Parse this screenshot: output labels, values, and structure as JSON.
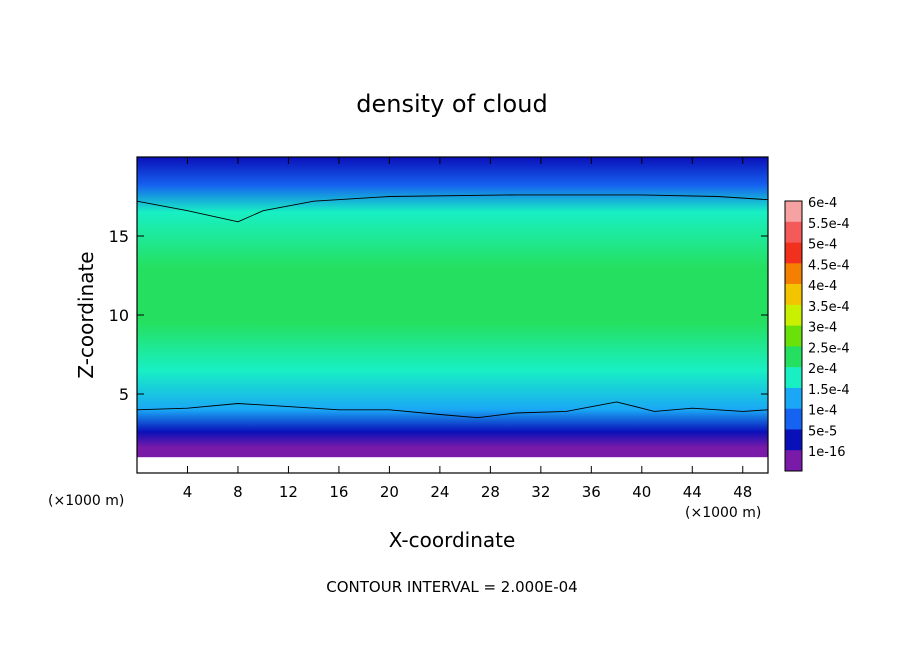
{
  "chart_data": {
    "type": "heatmap",
    "title": "density of cloud",
    "xlabel": "X-coordinate",
    "ylabel": "Z-coordinate",
    "x_unit_left": "(×1000 m)",
    "x_unit_right": "(×1000 m)",
    "footer": "CONTOUR INTERVAL = 2.000E-04",
    "xlim": [
      0,
      50
    ],
    "ylim": [
      0,
      20
    ],
    "x_ticks": [
      4,
      8,
      12,
      16,
      20,
      24,
      28,
      32,
      36,
      40,
      44,
      48
    ],
    "y_ticks": [
      5,
      10,
      15
    ],
    "grid": false,
    "colorbar": {
      "placement": "right",
      "levels": [
        {
          "label": "6e-4",
          "color": "#f7a2a2"
        },
        {
          "label": "5.5e-4",
          "color": "#f55a5a"
        },
        {
          "label": "5e-4",
          "color": "#f2301e"
        },
        {
          "label": "4.5e-4",
          "color": "#f57f00"
        },
        {
          "label": "4e-4",
          "color": "#f3c400"
        },
        {
          "label": "3.5e-4",
          "color": "#c8f000"
        },
        {
          "label": "3e-4",
          "color": "#6be10a"
        },
        {
          "label": "2.5e-4",
          "color": "#25e060"
        },
        {
          "label": "2e-4",
          "color": "#18f0c4"
        },
        {
          "label": "1.5e-4",
          "color": "#1aa7f5"
        },
        {
          "label": "1e-4",
          "color": "#1563f0"
        },
        {
          "label": "5e-5",
          "color": "#0a10b8"
        },
        {
          "label": "1e-16",
          "color": "#7a1aa8"
        }
      ]
    },
    "vertical_profile": [
      {
        "z": 1.0,
        "value": 0
      },
      {
        "z": 1.6,
        "value": 4e-05
      },
      {
        "z": 2.6,
        "value": 9e-05
      },
      {
        "z": 4.0,
        "value": 0.00015
      },
      {
        "z": 6.5,
        "value": 0.00023
      },
      {
        "z": 9.5,
        "value": 0.00027
      },
      {
        "z": 13.0,
        "value": 0.000255
      },
      {
        "z": 16.5,
        "value": 0.00021
      },
      {
        "z": 18.2,
        "value": 0.00014
      },
      {
        "z": 20.0,
        "value": 8e-05
      }
    ],
    "contour_lines": [
      {
        "level": 0.0002,
        "points": [
          [
            0,
            17.2
          ],
          [
            4,
            16.6
          ],
          [
            8,
            15.9
          ],
          [
            10,
            16.6
          ],
          [
            14,
            17.2
          ],
          [
            20,
            17.5
          ],
          [
            30,
            17.6
          ],
          [
            40,
            17.6
          ],
          [
            46,
            17.5
          ],
          [
            50,
            17.3
          ]
        ]
      },
      {
        "level": 0.00015,
        "points": [
          [
            0,
            4.0
          ],
          [
            4,
            4.1
          ],
          [
            8,
            4.4
          ],
          [
            12,
            4.2
          ],
          [
            16,
            4.0
          ],
          [
            20,
            4.0
          ],
          [
            24,
            3.7
          ],
          [
            27,
            3.5
          ],
          [
            30,
            3.8
          ],
          [
            34,
            3.9
          ],
          [
            38,
            4.5
          ],
          [
            41,
            3.9
          ],
          [
            44,
            4.1
          ],
          [
            48,
            3.9
          ],
          [
            50,
            4.0
          ]
        ]
      }
    ]
  }
}
